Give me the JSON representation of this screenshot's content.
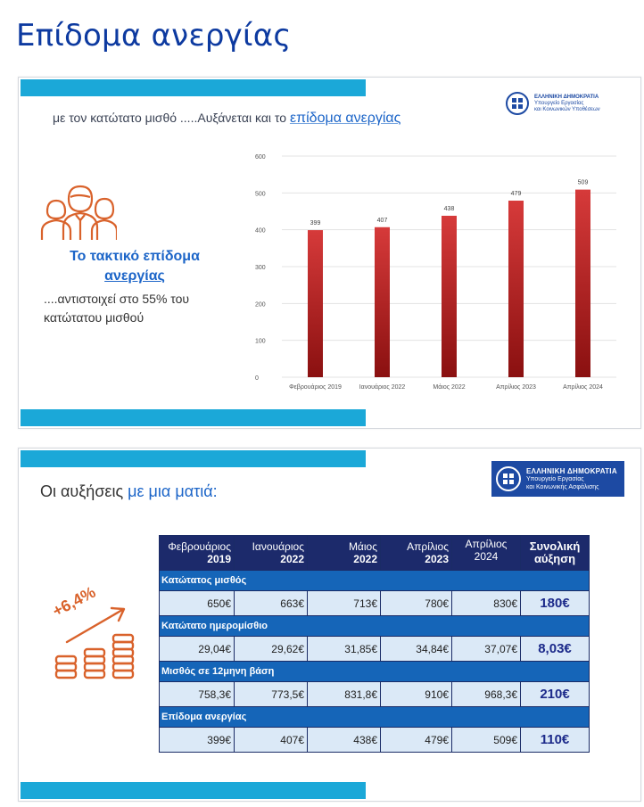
{
  "page": {
    "title": "Επίδομα ανεργίας"
  },
  "slide1": {
    "headline_prefix": "με τον κατώτατο μισθό .....Αυξάνεται και το",
    "headline_highlight": "επίδομα ανεργίας",
    "logo": {
      "line1": "ΕΛΛΗΝΙΚΗ ΔΗΜΟΚΡΑΤΙΑ",
      "line2": "Υπουργείο Εργασίας",
      "line3": "και Κοινωνικών Υποθέσεων"
    },
    "subtitle_line1": "Το τακτικό επίδομα",
    "subtitle_line2": "ανεργίας",
    "note": "....αντιστοιχεί στο 55% του κατώτατου μισθού",
    "icon": "people-group-icon"
  },
  "chart_data": {
    "type": "bar",
    "categories": [
      "Φεβρουάριος 2019",
      "Ιανουάριος 2022",
      "Μάιος 2022",
      "Απρίλιος 2023",
      "Απρίλιος 2024"
    ],
    "values": [
      399,
      407,
      438,
      479,
      509
    ],
    "ylim": [
      0,
      600
    ],
    "yticks": [
      0,
      100,
      200,
      300,
      400,
      500,
      600
    ],
    "grid": true,
    "bar_color": "#c62828",
    "title": "",
    "xlabel": "",
    "ylabel": ""
  },
  "slide2": {
    "headline_prefix": "Οι αυξήσεις",
    "headline_highlight": "με μια ματιά:",
    "logo": {
      "line1": "ΕΛΛΗΝΙΚΗ ΔΗΜΟΚΡΑΤΙΑ",
      "line2": "Υπουργείο Εργασίας",
      "line3": "και Κοινωνικής Ασφάλισης"
    },
    "growth_label": "+6,4%",
    "icon": "coins-growth-icon",
    "table": {
      "headers": [
        {
          "name": "Φεβρουάριος",
          "year": "2019"
        },
        {
          "name": "Ιανουάριος",
          "year": "2022"
        },
        {
          "name": "Μάιος",
          "year": "2022"
        },
        {
          "name": "Απρίλιος",
          "year": "2023"
        },
        {
          "name": "Απρίλιος 2024",
          "year": ""
        }
      ],
      "total_header": "Συνολική αύξηση",
      "sections": [
        {
          "label": "Κατώτατος μισθός",
          "values": [
            "650€",
            "663€",
            "713€",
            "780€",
            "830€"
          ],
          "total": "180€"
        },
        {
          "label": "Κατώτατο ημερομίσθιο",
          "values": [
            "29,04€",
            "29,62€",
            "31,85€",
            "34,84€",
            "37,07€"
          ],
          "total": "8,03€"
        },
        {
          "label": "Μισθός σε 12μηνη βάση",
          "values": [
            "758,3€",
            "773,5€",
            "831,8€",
            "910€",
            "968,3€"
          ],
          "total": "210€"
        },
        {
          "label": "Επίδομα ανεργίας",
          "values": [
            "399€",
            "407€",
            "438€",
            "479€",
            "509€"
          ],
          "total": "110€"
        }
      ]
    }
  },
  "colors": {
    "accent_bar": "#1ba8d8",
    "title_blue": "#0d3aa0",
    "highlight_blue": "#1c65c8",
    "icon_orange": "#d9622b",
    "table_header": "#1c2a6b",
    "table_section": "#1565b8",
    "table_cell": "#dbe9f7"
  }
}
